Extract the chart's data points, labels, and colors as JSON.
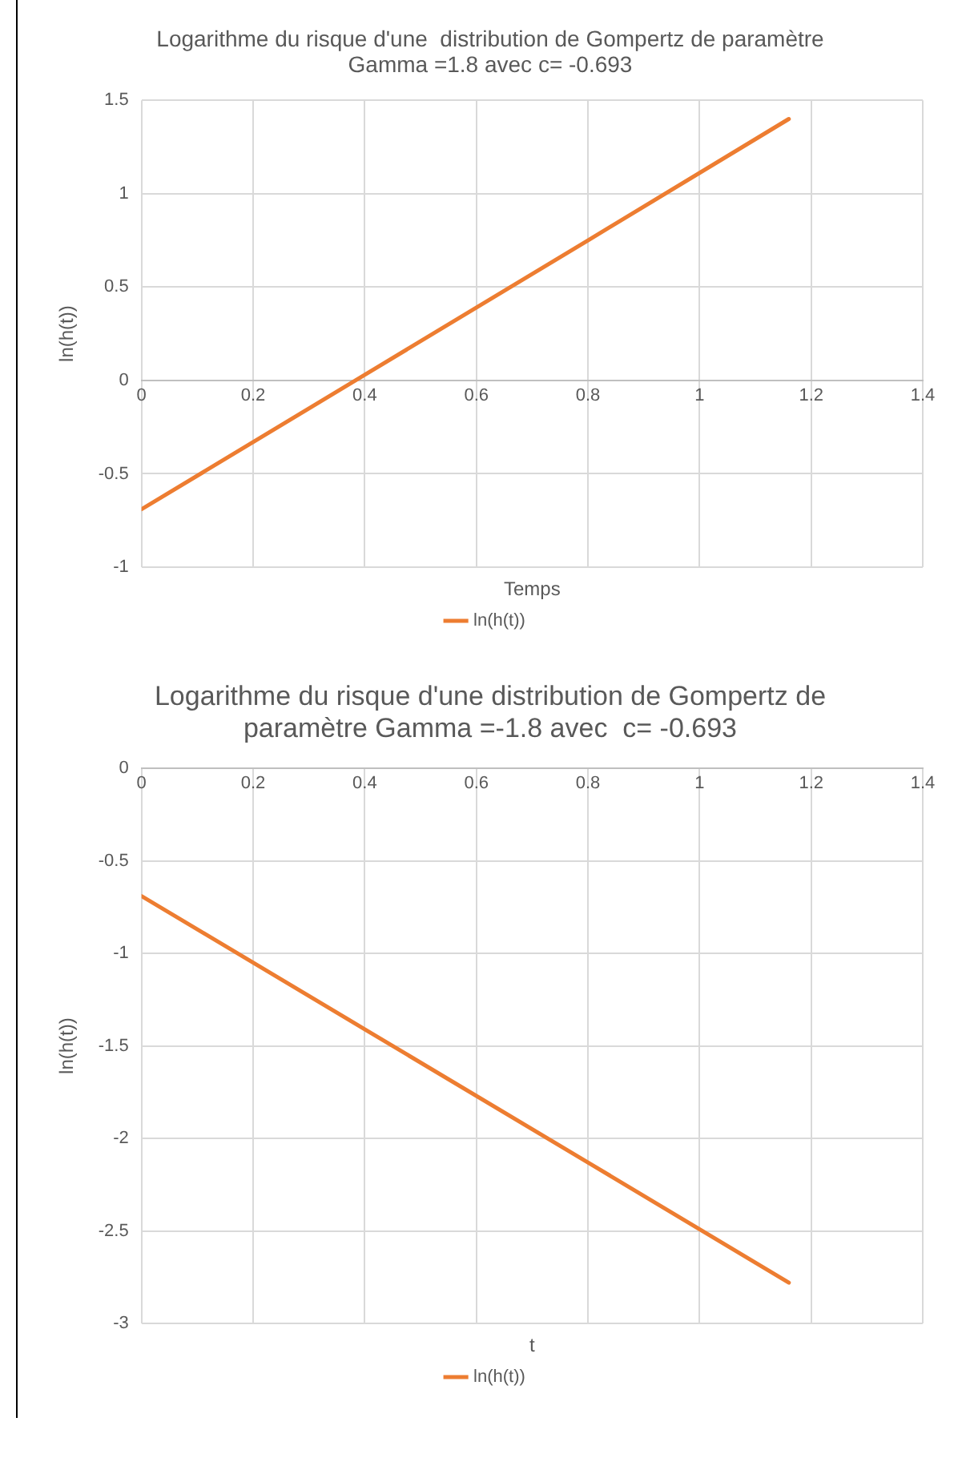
{
  "chart_data": [
    {
      "type": "line",
      "title": "Logarithme du risque d'une  distribution de Gompertz de paramètre Gamma =1.8 avec c= -0.693",
      "xlabel": "Temps",
      "ylabel": "ln(h(t))",
      "x": [
        0,
        0.4,
        0.8,
        1.16
      ],
      "series": [
        {
          "name": "ln(h(t))",
          "color": "#ed7d31",
          "values": [
            -0.69,
            0.03,
            0.75,
            1.4
          ]
        }
      ],
      "xlim": [
        0,
        1.4
      ],
      "xticks": [
        0,
        0.2,
        0.4,
        0.6,
        0.8,
        1,
        1.2,
        1.4
      ],
      "ylim": [
        -1,
        1.5
      ],
      "yticks": [
        -1,
        -0.5,
        0,
        0.5,
        1,
        1.5
      ],
      "grid": true,
      "legend": "bottom",
      "marker": "none",
      "line_style": "solid"
    },
    {
      "type": "line",
      "title": "Logarithme du risque d'une distribution de Gompertz de paramètre Gamma =-1.8 avec  c= -0.693",
      "xlabel": "t",
      "ylabel": "ln(h(t))",
      "x": [
        0,
        0.4,
        0.8,
        1.16
      ],
      "series": [
        {
          "name": "ln(h(t))",
          "color": "#ed7d31",
          "values": [
            -0.69,
            -1.41,
            -2.13,
            -2.78
          ]
        }
      ],
      "xlim": [
        0,
        1.4
      ],
      "xticks": [
        0,
        0.2,
        0.4,
        0.6,
        0.8,
        1,
        1.2,
        1.4
      ],
      "ylim": [
        -3,
        0
      ],
      "yticks": [
        -3,
        -2.5,
        -2,
        -1.5,
        -1,
        -0.5,
        0
      ],
      "grid": true,
      "legend": "bottom",
      "marker": "none",
      "line_style": "solid"
    }
  ]
}
